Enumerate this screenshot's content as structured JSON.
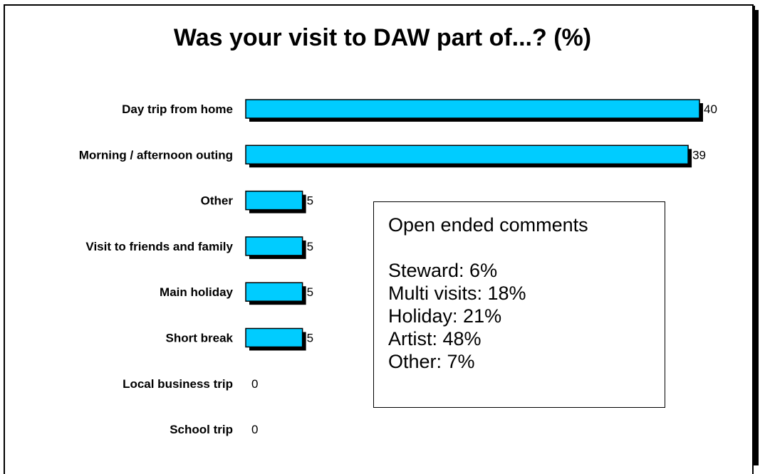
{
  "chart_data": {
    "type": "bar",
    "orientation": "horizontal",
    "title": "Was your visit to DAW part of...? (%)",
    "categories": [
      "Day trip from home",
      "Morning / afternoon outing",
      "Other",
      "Visit to friends and family",
      "Main holiday",
      "Short break",
      "Local business trip",
      "School trip"
    ],
    "values": [
      40,
      39,
      5,
      5,
      5,
      5,
      0,
      0
    ],
    "xlim": [
      0,
      40
    ],
    "grid": false,
    "colors": {
      "bar": "#00CCFF",
      "shadow": "#000000"
    }
  },
  "comments_box": {
    "heading": "Open ended comments",
    "lines": [
      "Steward: 6%",
      "Multi visits: 18%",
      "Holiday: 21%",
      "Artist: 48%",
      "Other: 7%"
    ]
  }
}
